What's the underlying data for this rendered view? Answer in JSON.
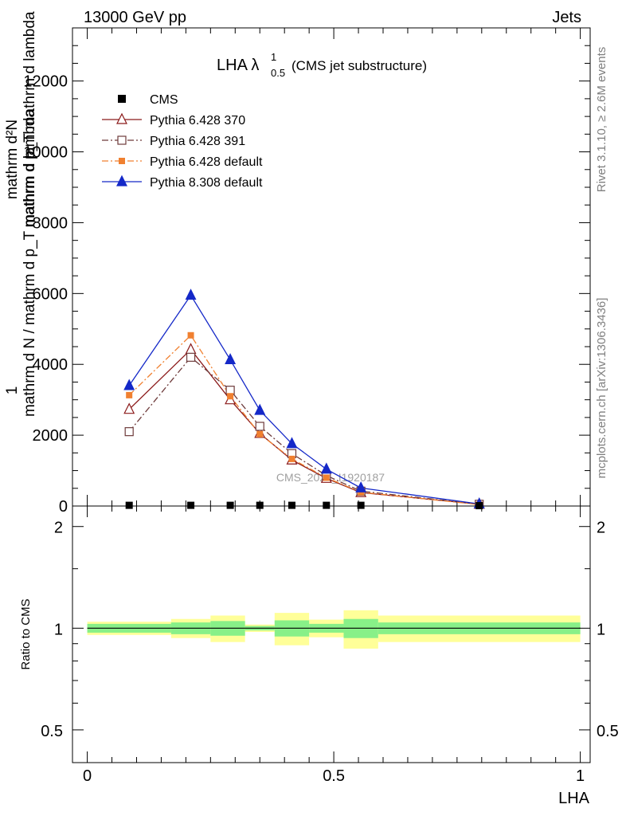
{
  "header": {
    "left": "13000 GeV pp",
    "right": "Jets"
  },
  "side": {
    "rivet": "Rivet 3.1.10, ≥ 2.6M events",
    "mcplots": "mcplots.cern.ch [arXiv:1306.3436]"
  },
  "watermark": "CMS_2021_I1920187",
  "chart_data": {
    "type": "line",
    "title": "LHA λ",
    "title_sup": "1",
    "title_sub": "0.5",
    "title_suffix": "(CMS jet substructure)",
    "xlabel": "LHA",
    "ylabel_numer": "1",
    "ylabel_denom": "mathrm d N / mathrm d p_T mathrm d lambda",
    "ylabel_top": "mathrm d²N",
    "ylabel_bottom": "mathrm d p_T mathrm d lambda",
    "ratio_ylabel": "Ratio to CMS",
    "xlim": [
      -0.03,
      1.02
    ],
    "ylim": [
      0,
      13500
    ],
    "ratio_ylim": [
      0.4,
      2.3
    ],
    "x_ticks": [
      {
        "v": 0,
        "label": "0"
      },
      {
        "v": 0.5,
        "label": "0.5"
      },
      {
        "v": 1,
        "label": "1"
      }
    ],
    "y_ticks": [
      {
        "v": 0,
        "label": "0"
      },
      {
        "v": 2000,
        "label": "2000"
      },
      {
        "v": 4000,
        "label": "4000"
      },
      {
        "v": 6000,
        "label": "6000"
      },
      {
        "v": 8000,
        "label": "8000"
      },
      {
        "v": 10000,
        "label": "10000"
      },
      {
        "v": 12000,
        "label": "12000"
      }
    ],
    "ratio_ticks": [
      {
        "v": 0.5,
        "label": "0.5"
      },
      {
        "v": 1,
        "label": "1"
      },
      {
        "v": 2,
        "label": "2"
      }
    ],
    "x": [
      0.085,
      0.21,
      0.29,
      0.35,
      0.415,
      0.485,
      0.555,
      0.795
    ],
    "bin_edges": [
      0.0,
      0.17,
      0.25,
      0.32,
      0.38,
      0.45,
      0.52,
      0.59,
      1.0
    ],
    "data": {
      "name": "CMS",
      "values": [
        20,
        20,
        20,
        20,
        20,
        20,
        20,
        10
      ]
    },
    "ratio_band_inner": [
      0.97,
      0.96,
      0.95,
      0.985,
      0.945,
      0.97,
      0.935,
      0.96
    ],
    "ratio_band_inner_hi": [
      1.03,
      1.04,
      1.05,
      1.015,
      1.055,
      1.03,
      1.065,
      1.04
    ],
    "ratio_band_outer": [
      0.955,
      0.935,
      0.91,
      0.975,
      0.89,
      0.94,
      0.87,
      0.91
    ],
    "ratio_band_outer_hi": [
      1.045,
      1.065,
      1.09,
      1.025,
      1.11,
      1.06,
      1.13,
      1.09
    ],
    "series": [
      {
        "name": "Pythia 6.428 370",
        "color": "#8b1a1a",
        "dash": "",
        "marker": "triangle-open",
        "values": [
          2730,
          4420,
          3000,
          2050,
          1300,
          780,
          380,
          50
        ]
      },
      {
        "name": "Pythia 6.428 391",
        "color": "#6e3b3b",
        "dash": "8,3,2,3",
        "marker": "square-open",
        "values": [
          2100,
          4200,
          3270,
          2250,
          1480,
          860,
          420,
          50
        ]
      },
      {
        "name": "Pythia 6.428 default",
        "color": "#f08030",
        "dash": "8,3,2,3",
        "marker": "square-filled",
        "values": [
          3130,
          4820,
          3100,
          2030,
          1330,
          800,
          390,
          40
        ]
      },
      {
        "name": "Pythia 8.308 default",
        "color": "#1428c8",
        "dash": "",
        "marker": "triangle-filled",
        "values": [
          3400,
          5950,
          4130,
          2700,
          1760,
          1040,
          510,
          60
        ]
      }
    ]
  }
}
